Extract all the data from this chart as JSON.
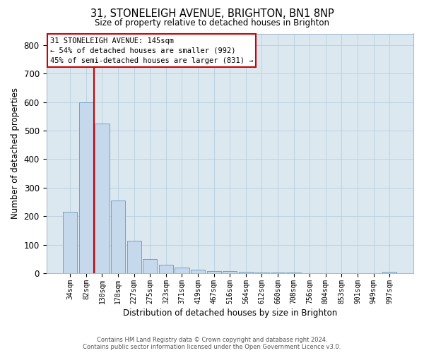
{
  "title": "31, STONELEIGH AVENUE, BRIGHTON, BN1 8NP",
  "subtitle": "Size of property relative to detached houses in Brighton",
  "xlabel": "Distribution of detached houses by size in Brighton",
  "ylabel": "Number of detached properties",
  "bar_labels": [
    "34sqm",
    "82sqm",
    "130sqm",
    "178sqm",
    "227sqm",
    "275sqm",
    "323sqm",
    "371sqm",
    "419sqm",
    "467sqm",
    "516sqm",
    "564sqm",
    "612sqm",
    "660sqm",
    "708sqm",
    "756sqm",
    "804sqm",
    "853sqm",
    "901sqm",
    "949sqm",
    "997sqm"
  ],
  "bar_values": [
    215,
    600,
    525,
    255,
    115,
    50,
    30,
    20,
    12,
    8,
    8,
    5,
    3,
    3,
    2,
    1,
    1,
    1,
    0,
    0,
    5
  ],
  "bar_color": "#c5d8ec",
  "bar_edge_color": "#6699bb",
  "vline_color": "#cc0000",
  "vline_x": 2.0,
  "annotation_line1": "31 STONELEIGH AVENUE: 145sqm",
  "annotation_line2": "← 54% of detached houses are smaller (992)",
  "annotation_line3": "45% of semi-detached houses are larger (831) →",
  "ylim_max": 840,
  "yticks": [
    0,
    100,
    200,
    300,
    400,
    500,
    600,
    700,
    800
  ],
  "plot_bg_color": "#dce8f0",
  "grid_color": "#b8cedd",
  "footer_line1": "Contains HM Land Registry data © Crown copyright and database right 2024.",
  "footer_line2": "Contains public sector information licensed under the Open Government Licence v3.0."
}
